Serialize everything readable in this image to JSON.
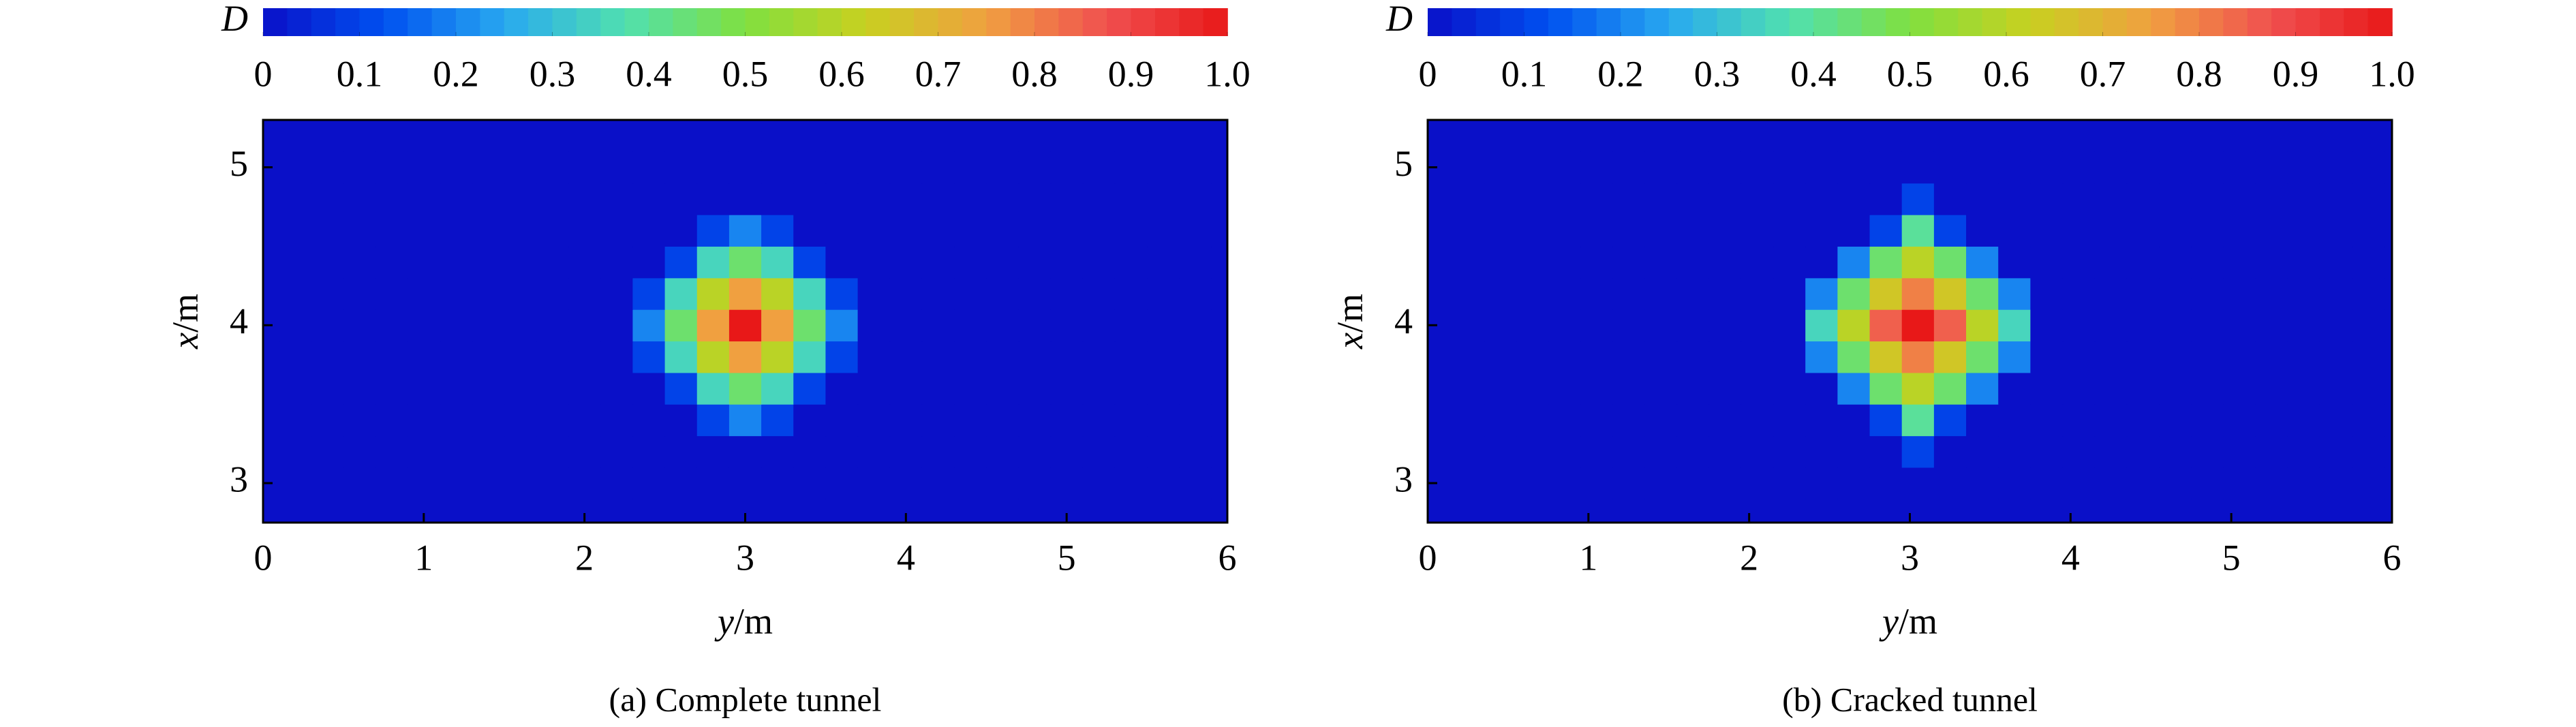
{
  "chart_data": [
    {
      "type": "heatmap",
      "caption": "(a) Complete tunnel",
      "xlabel": {
        "symbol": "y",
        "unit": "/m"
      },
      "ylabel": {
        "symbol": "x",
        "unit": "/m"
      },
      "xlim": [
        0,
        6
      ],
      "ylim": [
        2.75,
        5.3
      ],
      "xticks": [
        0,
        1,
        2,
        3,
        4,
        5,
        6
      ],
      "yticks": [
        3,
        4,
        5
      ],
      "x": [
        0,
        0.2,
        0.4,
        0.6,
        0.8,
        1,
        1.2,
        1.4,
        1.6,
        1.8,
        2,
        2.2,
        2.4,
        2.6,
        2.8,
        3,
        3.2,
        3.4,
        3.6,
        3.8,
        4,
        4.2,
        4.4,
        4.6,
        4.8,
        5,
        5.2,
        5.4,
        5.6,
        5.8,
        6
      ],
      "y": [
        2.8,
        3,
        3.2,
        3.4,
        3.6,
        3.8,
        4,
        4.2,
        4.4,
        4.6,
        4.8,
        5,
        5.2
      ],
      "z": [
        [
          0,
          0,
          0,
          0,
          0,
          0,
          0,
          0,
          0,
          0,
          0,
          0,
          0,
          0,
          0,
          0,
          0,
          0,
          0,
          0,
          0,
          0,
          0,
          0,
          0,
          0,
          0,
          0,
          0,
          0,
          0
        ],
        [
          0,
          0,
          0,
          0,
          0,
          0,
          0,
          0,
          0,
          0,
          0,
          0,
          0,
          0,
          0,
          0,
          0,
          0,
          0,
          0,
          0,
          0,
          0,
          0,
          0,
          0,
          0,
          0,
          0,
          0,
          0
        ],
        [
          0,
          0,
          0,
          0,
          0,
          0,
          0,
          0,
          0,
          0,
          0,
          0,
          0,
          0,
          0,
          0,
          0,
          0,
          0,
          0,
          0,
          0,
          0,
          0,
          0,
          0,
          0,
          0,
          0,
          0,
          0
        ],
        [
          0,
          0,
          0,
          0,
          0,
          0,
          0,
          0,
          0,
          0,
          0,
          0,
          0,
          0,
          0.1,
          0.2,
          0.1,
          0,
          0,
          0,
          0,
          0,
          0,
          0,
          0,
          0,
          0,
          0,
          0,
          0,
          0
        ],
        [
          0,
          0,
          0,
          0,
          0,
          0,
          0,
          0,
          0,
          0,
          0,
          0,
          0,
          0.1,
          0.35,
          0.45,
          0.35,
          0.1,
          0,
          0,
          0,
          0,
          0,
          0,
          0,
          0,
          0,
          0,
          0,
          0,
          0
        ],
        [
          0,
          0,
          0,
          0,
          0,
          0,
          0,
          0,
          0,
          0,
          0,
          0,
          0.1,
          0.35,
          0.6,
          0.75,
          0.6,
          0.35,
          0.1,
          0,
          0,
          0,
          0,
          0,
          0,
          0,
          0,
          0,
          0,
          0,
          0
        ],
        [
          0,
          0,
          0,
          0,
          0,
          0,
          0,
          0,
          0,
          0,
          0,
          0,
          0.2,
          0.45,
          0.75,
          1,
          0.75,
          0.45,
          0.2,
          0,
          0,
          0,
          0,
          0,
          0,
          0,
          0,
          0,
          0,
          0,
          0
        ],
        [
          0,
          0,
          0,
          0,
          0,
          0,
          0,
          0,
          0,
          0,
          0,
          0,
          0.1,
          0.35,
          0.6,
          0.75,
          0.6,
          0.35,
          0.1,
          0,
          0,
          0,
          0,
          0,
          0,
          0,
          0,
          0,
          0,
          0,
          0
        ],
        [
          0,
          0,
          0,
          0,
          0,
          0,
          0,
          0,
          0,
          0,
          0,
          0,
          0,
          0.1,
          0.35,
          0.45,
          0.35,
          0.1,
          0,
          0,
          0,
          0,
          0,
          0,
          0,
          0,
          0,
          0,
          0,
          0,
          0
        ],
        [
          0,
          0,
          0,
          0,
          0,
          0,
          0,
          0,
          0,
          0,
          0,
          0,
          0,
          0,
          0.1,
          0.2,
          0.1,
          0,
          0,
          0,
          0,
          0,
          0,
          0,
          0,
          0,
          0,
          0,
          0,
          0,
          0
        ],
        [
          0,
          0,
          0,
          0,
          0,
          0,
          0,
          0,
          0,
          0,
          0,
          0,
          0,
          0,
          0,
          0,
          0,
          0,
          0,
          0,
          0,
          0,
          0,
          0,
          0,
          0,
          0,
          0,
          0,
          0,
          0
        ],
        [
          0,
          0,
          0,
          0,
          0,
          0,
          0,
          0,
          0,
          0,
          0,
          0,
          0,
          0,
          0,
          0,
          0,
          0,
          0,
          0,
          0,
          0,
          0,
          0,
          0,
          0,
          0,
          0,
          0,
          0,
          0
        ],
        [
          0,
          0,
          0,
          0,
          0,
          0,
          0,
          0,
          0,
          0,
          0,
          0,
          0,
          0,
          0,
          0,
          0,
          0,
          0,
          0,
          0,
          0,
          0,
          0,
          0,
          0,
          0,
          0,
          0,
          0,
          0
        ]
      ],
      "colormap": [
        "#0a10c8",
        "#0050f0",
        "#28a8f0",
        "#50e0b0",
        "#80e040",
        "#c8d020",
        "#f0a040",
        "#f05050",
        "#e81818"
      ],
      "colorbar": {
        "label": "D",
        "lim": [
          0,
          1
        ],
        "ticks": [
          0,
          0.1,
          0.2,
          0.3,
          0.4,
          0.5,
          0.6,
          0.7,
          0.8,
          0.9,
          {
            "value": 1,
            "label": "1.0"
          }
        ]
      }
    },
    {
      "type": "heatmap",
      "caption": "(b) Cracked tunnel",
      "xlabel": {
        "symbol": "y",
        "unit": "/m"
      },
      "ylabel": {
        "symbol": "x",
        "unit": "/m"
      },
      "xlim": [
        0,
        6
      ],
      "ylim": [
        2.75,
        5.3
      ],
      "xticks": [
        0,
        1,
        2,
        3,
        4,
        5,
        6
      ],
      "yticks": [
        3,
        4,
        5
      ],
      "x": [
        0.05,
        0.25,
        0.45,
        0.65,
        0.85,
        1.05,
        1.25,
        1.45,
        1.65,
        1.85,
        2.05,
        2.25,
        2.45,
        2.65,
        2.85,
        3.05,
        3.25,
        3.45,
        3.65,
        3.85,
        4.05,
        4.25,
        4.45,
        4.65,
        4.85,
        5.05,
        5.25,
        5.45,
        5.65,
        5.85,
        6.05
      ],
      "y": [
        2.8,
        3,
        3.2,
        3.4,
        3.6,
        3.8,
        4,
        4.2,
        4.4,
        4.6,
        4.8,
        5,
        5.2
      ],
      "z": [
        [
          0,
          0,
          0,
          0,
          0,
          0,
          0,
          0,
          0,
          0,
          0,
          0,
          0,
          0,
          0,
          0,
          0,
          0,
          0,
          0,
          0,
          0,
          0,
          0,
          0,
          0,
          0,
          0,
          0,
          0,
          0
        ],
        [
          0,
          0,
          0,
          0,
          0,
          0,
          0,
          0,
          0,
          0,
          0,
          0,
          0,
          0,
          0,
          0,
          0,
          0,
          0,
          0,
          0,
          0,
          0,
          0,
          0,
          0,
          0,
          0,
          0,
          0,
          0
        ],
        [
          0,
          0,
          0,
          0,
          0,
          0,
          0,
          0,
          0,
          0,
          0,
          0,
          0,
          0,
          0,
          0.1,
          0,
          0,
          0,
          0,
          0,
          0,
          0,
          0,
          0,
          0,
          0,
          0,
          0,
          0,
          0
        ],
        [
          0,
          0,
          0,
          0,
          0,
          0,
          0,
          0,
          0,
          0,
          0,
          0,
          0,
          0,
          0.1,
          0.4,
          0.1,
          0,
          0,
          0,
          0,
          0,
          0,
          0,
          0,
          0,
          0,
          0,
          0,
          0,
          0
        ],
        [
          0,
          0,
          0,
          0,
          0,
          0,
          0,
          0,
          0,
          0,
          0,
          0,
          0,
          0.2,
          0.45,
          0.6,
          0.45,
          0.2,
          0,
          0,
          0,
          0,
          0,
          0,
          0,
          0,
          0,
          0,
          0,
          0,
          0
        ],
        [
          0,
          0,
          0,
          0,
          0,
          0,
          0,
          0,
          0,
          0,
          0,
          0,
          0.2,
          0.45,
          0.65,
          0.8,
          0.65,
          0.45,
          0.2,
          0,
          0,
          0,
          0,
          0,
          0,
          0,
          0,
          0,
          0,
          0,
          0
        ],
        [
          0,
          0,
          0,
          0,
          0,
          0,
          0,
          0,
          0,
          0,
          0,
          0,
          0.35,
          0.6,
          0.85,
          1,
          0.85,
          0.6,
          0.35,
          0,
          0,
          0,
          0,
          0,
          0,
          0,
          0,
          0,
          0,
          0,
          0
        ],
        [
          0,
          0,
          0,
          0,
          0,
          0,
          0,
          0,
          0,
          0,
          0,
          0,
          0.2,
          0.45,
          0.65,
          0.8,
          0.65,
          0.45,
          0.2,
          0,
          0,
          0,
          0,
          0,
          0,
          0,
          0,
          0,
          0,
          0,
          0
        ],
        [
          0,
          0,
          0,
          0,
          0,
          0,
          0,
          0,
          0,
          0,
          0,
          0,
          0,
          0.2,
          0.45,
          0.6,
          0.45,
          0.2,
          0,
          0,
          0,
          0,
          0,
          0,
          0,
          0,
          0,
          0,
          0,
          0,
          0
        ],
        [
          0,
          0,
          0,
          0,
          0,
          0,
          0,
          0,
          0,
          0,
          0,
          0,
          0,
          0,
          0.1,
          0.4,
          0.1,
          0,
          0,
          0,
          0,
          0,
          0,
          0,
          0,
          0,
          0,
          0,
          0,
          0,
          0
        ],
        [
          0,
          0,
          0,
          0,
          0,
          0,
          0,
          0,
          0,
          0,
          0,
          0,
          0,
          0,
          0,
          0.1,
          0,
          0,
          0,
          0,
          0,
          0,
          0,
          0,
          0,
          0,
          0,
          0,
          0,
          0,
          0
        ],
        [
          0,
          0,
          0,
          0,
          0,
          0,
          0,
          0,
          0,
          0,
          0,
          0,
          0,
          0,
          0,
          0,
          0,
          0,
          0,
          0,
          0,
          0,
          0,
          0,
          0,
          0,
          0,
          0,
          0,
          0,
          0
        ],
        [
          0,
          0,
          0,
          0,
          0,
          0,
          0,
          0,
          0,
          0,
          0,
          0,
          0,
          0,
          0,
          0,
          0,
          0,
          0,
          0,
          0,
          0,
          0,
          0,
          0,
          0,
          0,
          0,
          0,
          0,
          0
        ]
      ],
      "colormap": [
        "#0a10c8",
        "#0050f0",
        "#28a8f0",
        "#50e0b0",
        "#80e040",
        "#c8d020",
        "#f0a040",
        "#f05050",
        "#e81818"
      ],
      "colorbar": {
        "label": "D",
        "lim": [
          0,
          1
        ],
        "ticks": [
          0,
          0.1,
          0.2,
          0.3,
          0.4,
          0.5,
          0.6,
          0.7,
          0.8,
          0.9,
          {
            "value": 1,
            "label": "1.0"
          }
        ]
      }
    }
  ]
}
